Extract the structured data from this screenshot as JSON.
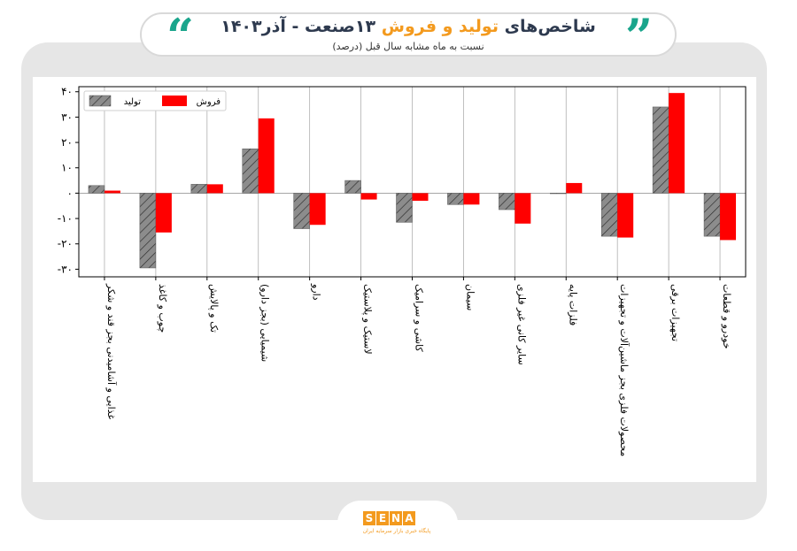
{
  "header": {
    "title_part1": "شاخص‌های ",
    "title_part2": "تولید و فروش",
    "title_part3": " ۱۳صنعت - آذر۱۴۰۳",
    "subtitle": "نسبت به ماه مشابه سال قبل (درصد)",
    "quote_open": "“",
    "quote_close": "”"
  },
  "logo": {
    "letters": [
      "S",
      "E",
      "N",
      "A"
    ],
    "tagline": "پایگاه خبری بازار سرمایه ایران"
  },
  "colors": {
    "production": "#8c8c8c",
    "sales": "#ff0000",
    "accent": "#f39a1e",
    "quote": "#1aa58c"
  },
  "chart_data": {
    "type": "bar",
    "title": "",
    "xlabel": "",
    "ylabel": "",
    "ylim": [
      -33,
      42
    ],
    "yticks": [
      40,
      30,
      20,
      10,
      0,
      -10,
      -20,
      -30
    ],
    "ytick_labels": [
      "۴۰",
      "۳۰",
      "۲۰",
      "۱۰",
      "۰",
      "-۱۰",
      "-۲۰",
      "-۳۰"
    ],
    "grid": "vertical",
    "legend_position": "top-left",
    "categories": [
      "غذایی و آشامیدنی بجز قند و شکر",
      "چوب و کاغذ",
      "تک و پالایش",
      "شیمیایی (بجز دارو)",
      "دارو",
      "لاستیک و پلاستیک",
      "کاشی و سرامیک",
      "سیمان",
      "سایر کانی غیر فلزی",
      "فلزات پایه",
      "محصولات فلزی بجز ماشین‌آلات و تجهیزات",
      "تجهیزات برقی",
      "خودرو و قطعات"
    ],
    "series": [
      {
        "name": "تولید",
        "pattern": "hatched",
        "values": [
          3,
          -29.5,
          3.5,
          17.5,
          -14,
          5,
          -11.5,
          -4.5,
          -6.5,
          0,
          -17,
          34,
          -17
        ]
      },
      {
        "name": "فروش",
        "pattern": "solid",
        "values": [
          1,
          -15.5,
          3.5,
          29.5,
          -12.5,
          -2.5,
          -3,
          -4.5,
          -12,
          4,
          -17.5,
          39.5,
          -18.5
        ]
      }
    ]
  }
}
